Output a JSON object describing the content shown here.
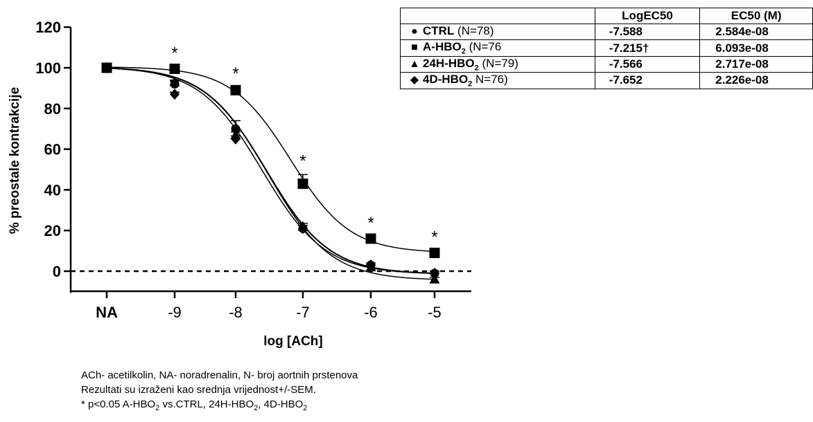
{
  "chart_data": {
    "type": "line",
    "ylabel": "% preostale kontrakcije",
    "xlabel": "log [ACh]",
    "categories": [
      "NA",
      "-9",
      "-8",
      "-7",
      "-6",
      "-5"
    ],
    "ylim": [
      -10,
      120
    ],
    "yticks": [
      0,
      20,
      40,
      60,
      80,
      100,
      120
    ],
    "reference_line": 0,
    "series": [
      {
        "name": "CTRL",
        "marker": "circle",
        "values": [
          100,
          92,
          70,
          21,
          3,
          -1
        ],
        "sem": [
          0,
          1.5,
          4,
          1.5,
          1,
          1
        ]
      },
      {
        "name": "A-HBO2",
        "marker": "square",
        "values": [
          100,
          99.5,
          89,
          43,
          16,
          9
        ],
        "sem": [
          0,
          1,
          1.5,
          4.5,
          1,
          1
        ]
      },
      {
        "name": "24H-HBO2",
        "marker": "triangle",
        "values": [
          100,
          93,
          67,
          22,
          2,
          -4
        ],
        "sem": [
          0,
          1,
          1.5,
          1.5,
          1,
          1
        ]
      },
      {
        "name": "4D-HBO2",
        "marker": "diamond",
        "values": [
          100,
          87,
          65,
          21,
          3,
          -1
        ],
        "sem": [
          0,
          1,
          1.5,
          1.5,
          1,
          1
        ]
      }
    ],
    "significance": {
      "symbol": "*",
      "categories": [
        "-9",
        "-8",
        "-7",
        "-6",
        "-5"
      ]
    }
  },
  "table": {
    "headers": [
      "",
      "LogEC50",
      "EC50 (M)"
    ],
    "rows": [
      {
        "marker": "●",
        "name": "CTRL",
        "name_sub": "",
        "n": " (N=78)",
        "logec50": "-7.588",
        "ec50": "2.584e-08"
      },
      {
        "marker": "■",
        "name": "A-HBO",
        "name_sub": "2",
        "n": " (N=76",
        "logec50": "-7.215†",
        "ec50": "6.093e-08"
      },
      {
        "marker": "▲",
        "name": "24H-HBO",
        "name_sub": "2",
        "n": " (N=79)",
        "logec50": "-7.566",
        "ec50": "2.717e-08"
      },
      {
        "marker": "◆",
        "name": "4D-HBO",
        "name_sub": "2",
        "n": " N=76)",
        "logec50": "-7.652",
        "ec50": "2.226e-08"
      }
    ]
  },
  "footnote": {
    "line1": "ACh- acetilkolin, NA- noradrenalin, N- broj aortnih prstenova",
    "line2": "Rezultati su izraženi kao srednja vrijednost+/-SEM.",
    "line3_a": "* p<0.05 A-HBO",
    "line3_b": " vs.CTRL, 24H-HBO",
    "line3_c": ", 4D-HBO",
    "sub": "2"
  }
}
